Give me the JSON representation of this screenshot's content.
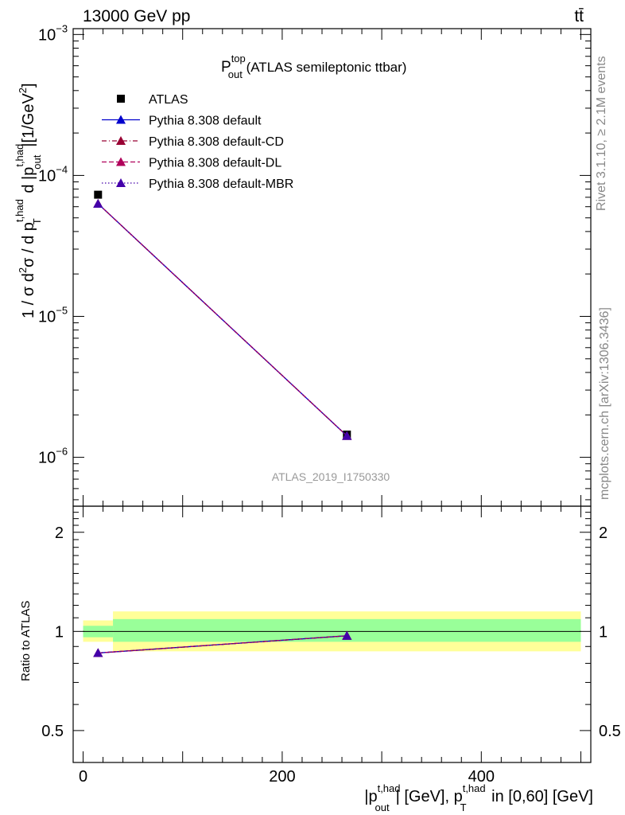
{
  "header": {
    "left": "13000 GeV pp",
    "right": "tt̄"
  },
  "side": {
    "rivet": "Rivet 3.1.10, ≥ 2.1M events",
    "mcplots": "mcplots.cern.ch [arXiv:1306.3436]"
  },
  "title": {
    "main": "P",
    "sup": "top",
    "sub": "out",
    "rest": " (ATLAS semileptonic ttbar)"
  },
  "analysis_id": "ATLAS_2019_I1750330",
  "colors": {
    "data": "#000000",
    "default": "#0000cc",
    "cd": "#990033",
    "dl": "#b0005a",
    "mbr": "#4400aa",
    "band_inner": "#99ff99",
    "band_outer": "#ffff99"
  },
  "chart_data": [
    {
      "type": "scatter",
      "panel": "main",
      "ylabel": "1 / σ d²σ / d p_T^{t,had} d |p_out^{t,had}| [1/GeV²]",
      "yscale": "log",
      "ylim": [
        4.5e-07,
        0.0011
      ],
      "xlim": [
        -10,
        510
      ],
      "y_ticks": [
        {
          "value": 1e-06,
          "base": "10",
          "exp": "−6"
        },
        {
          "value": 1e-05,
          "base": "10",
          "exp": "−5"
        },
        {
          "value": 0.0001,
          "base": "10",
          "exp": "−4"
        },
        {
          "value": 0.001,
          "base": "10",
          "exp": "−3"
        }
      ],
      "legend_position": "top-left",
      "series": [
        {
          "name": "ATLAS",
          "key": "data",
          "marker": "square",
          "x": [
            15,
            265
          ],
          "y": [
            7.3e-05,
            1.45e-06
          ],
          "xerr": [
            [
              0,
              30
            ],
            [
              30,
              500
            ]
          ]
        },
        {
          "name": "Pythia 8.308 default",
          "key": "default",
          "marker": "triangle",
          "line": "solid",
          "x": [
            15,
            265
          ],
          "y": [
            6.3e-05,
            1.42e-06
          ]
        },
        {
          "name": "Pythia 8.308 default-CD",
          "key": "cd",
          "marker": "triangle",
          "line": "dashdot",
          "x": [
            15,
            265
          ],
          "y": [
            6.3e-05,
            1.42e-06
          ]
        },
        {
          "name": "Pythia 8.308 default-DL",
          "key": "dl",
          "marker": "triangle",
          "line": "dashed",
          "x": [
            15,
            265
          ],
          "y": [
            6.3e-05,
            1.42e-06
          ]
        },
        {
          "name": "Pythia 8.308 default-MBR",
          "key": "mbr",
          "marker": "triangle",
          "line": "dotted",
          "x": [
            15,
            265
          ],
          "y": [
            6.3e-05,
            1.42e-06
          ]
        }
      ]
    },
    {
      "type": "line",
      "panel": "ratio",
      "ylabel": "Ratio to ATLAS",
      "yscale": "log",
      "ylim": [
        0.4,
        2.4
      ],
      "xlim": [
        -10,
        510
      ],
      "xlabel": "|p_out^{t,had}| [GeV], p_T^{t,had} in [0,60] [GeV]",
      "x_ticks": [
        0,
        200,
        400
      ],
      "y_ticks": [
        0.5,
        1,
        2
      ],
      "y_tick_labels": [
        "0.5",
        "1",
        "2"
      ],
      "bands": [
        {
          "x_range": [
            0,
            30
          ],
          "inner": [
            0.96,
            1.04
          ],
          "outer": [
            0.93,
            1.08
          ]
        },
        {
          "x_range": [
            30,
            500
          ],
          "inner": [
            0.93,
            1.09
          ],
          "outer": [
            0.87,
            1.15
          ]
        }
      ],
      "series": [
        {
          "name": "Pythia 8.308 default",
          "key": "default",
          "x": [
            15,
            265
          ],
          "y": [
            0.86,
            0.97
          ]
        },
        {
          "name": "Pythia 8.308 default-CD",
          "key": "cd",
          "x": [
            15,
            265
          ],
          "y": [
            0.86,
            0.97
          ]
        },
        {
          "name": "Pythia 8.308 default-DL",
          "key": "dl",
          "x": [
            15,
            265
          ],
          "y": [
            0.86,
            0.97
          ]
        },
        {
          "name": "Pythia 8.308 default-MBR",
          "key": "mbr",
          "x": [
            15,
            265
          ],
          "y": [
            0.86,
            0.97
          ]
        }
      ]
    }
  ]
}
